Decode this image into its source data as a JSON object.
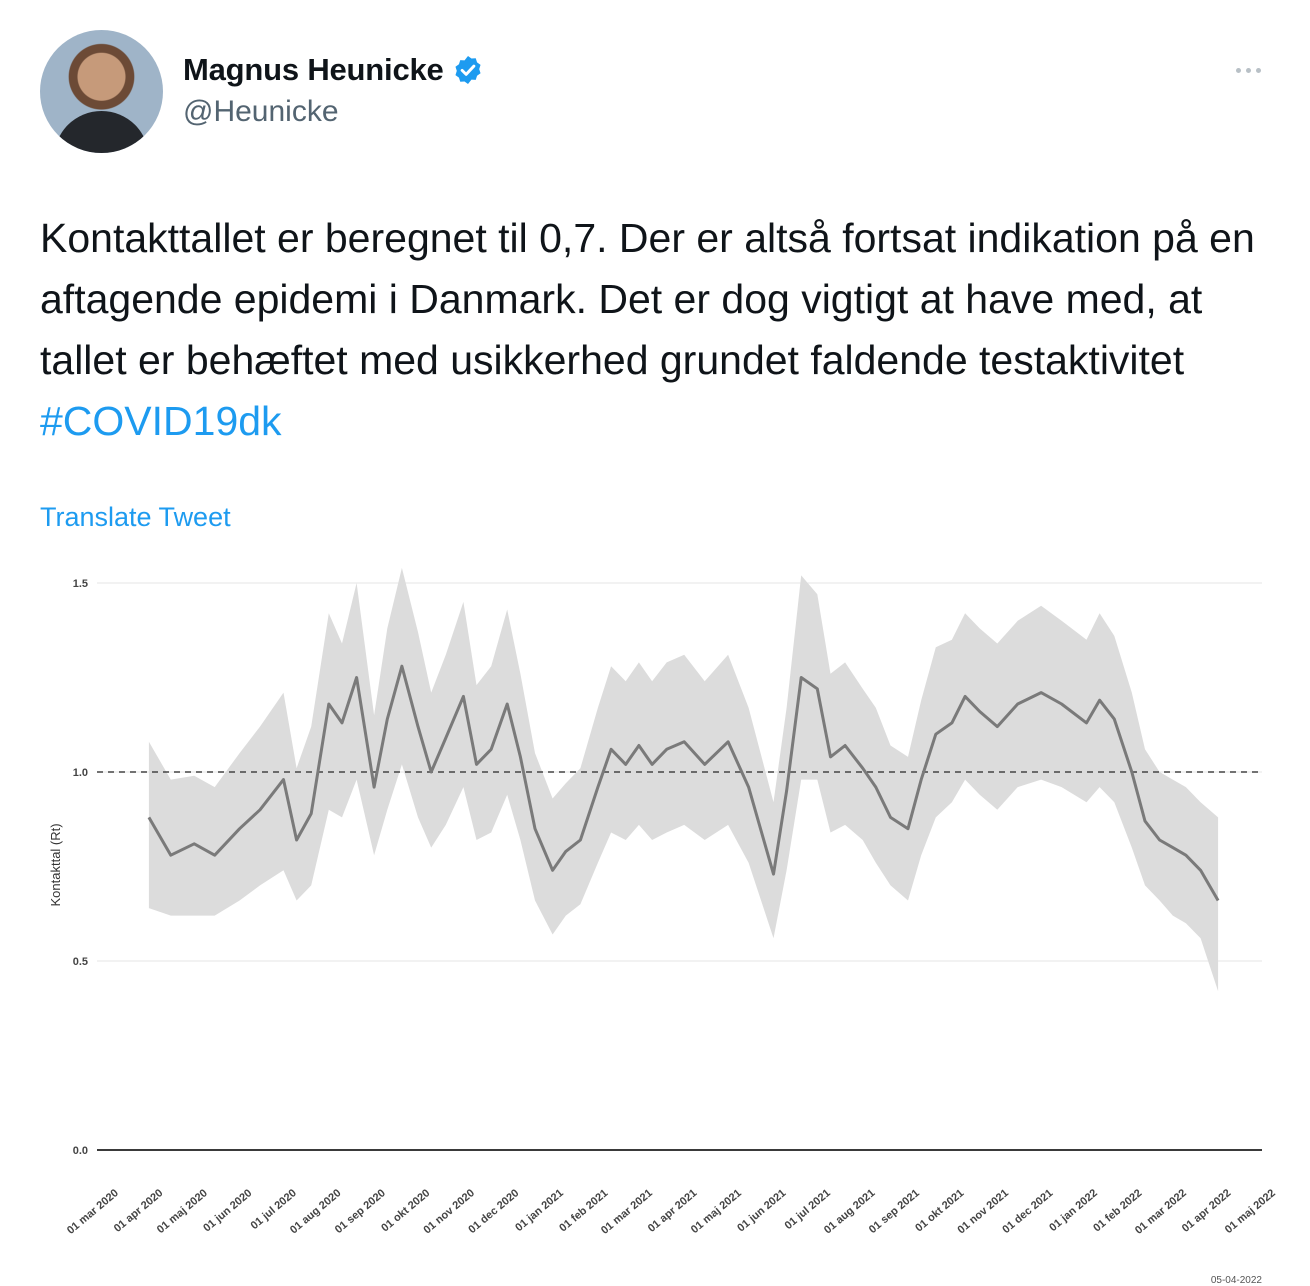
{
  "author": {
    "display_name": "Magnus Heunicke",
    "handle": "@Heunicke",
    "verified_icon": "verified-badge-icon"
  },
  "tweet": {
    "text": "Kontakttallet er beregnet til 0,7. Der er altså fortsat indikation på en aftagende epidemi i Danmark. Det er dog vigtigt at have med, at tallet er behæftet med usikkerhed grundet faldende testaktivitet ",
    "hashtag": "#COVID19dk",
    "translate_label": "Translate Tweet"
  },
  "colors": {
    "link": "#1d9bf0",
    "band": "#dcdcdc",
    "line": "#7a7a7a"
  },
  "chart_data": {
    "type": "line",
    "ylabel": "Kontakttal (Rt)",
    "ylim": [
      0,
      1.5
    ],
    "yticks": [
      "0.0",
      "0.5",
      "1.0",
      "1.5"
    ],
    "reference_line": 1.0,
    "xticks": [
      "01 mar 2020",
      "01 apr 2020",
      "01 maj 2020",
      "01 jun 2020",
      "01 jul 2020",
      "01 aug 2020",
      "01 sep 2020",
      "01 okt 2020",
      "01 nov 2020",
      "01 dec 2020",
      "01 jan 2021",
      "01 feb 2021",
      "01 mar 2021",
      "01 apr 2021",
      "01 maj 2021",
      "01 jun 2021",
      "01 jul 2021",
      "01 aug 2021",
      "01 sep 2021",
      "01 okt 2021",
      "01 nov 2021",
      "01 dec 2021",
      "01 jan 2022",
      "01 feb 2022",
      "01 mar 2022",
      "01 apr 2022",
      "01 maj 2022"
    ],
    "footnote": "05-04-2022",
    "series": [
      {
        "x": [
          "2020-03-31",
          "2020-04-15",
          "2020-05-01",
          "2020-05-15",
          "2020-06-01",
          "2020-06-15",
          "2020-07-01",
          "2020-07-10",
          "2020-07-20",
          "2020-08-01",
          "2020-08-10",
          "2020-08-20",
          "2020-09-01",
          "2020-09-10",
          "2020-09-20",
          "2020-10-01",
          "2020-10-10",
          "2020-10-20",
          "2020-11-01",
          "2020-11-10",
          "2020-11-20",
          "2020-12-01",
          "2020-12-10",
          "2020-12-20",
          "2021-01-01",
          "2021-01-10",
          "2021-01-20",
          "2021-02-01",
          "2021-02-10",
          "2021-02-20",
          "2021-03-01",
          "2021-03-10",
          "2021-03-20",
          "2021-04-01",
          "2021-04-15",
          "2021-05-01",
          "2021-05-15",
          "2021-06-01",
          "2021-06-10",
          "2021-06-20",
          "2021-07-01",
          "2021-07-10",
          "2021-07-20",
          "2021-08-01",
          "2021-08-10",
          "2021-08-20",
          "2021-09-01",
          "2021-09-10",
          "2021-09-20",
          "2021-10-01",
          "2021-10-10",
          "2021-10-20",
          "2021-11-01",
          "2021-11-15",
          "2021-12-01",
          "2021-12-15",
          "2022-01-01",
          "2022-01-10",
          "2022-01-20",
          "2022-02-01",
          "2022-02-10",
          "2022-02-20",
          "2022-03-01",
          "2022-03-10",
          "2022-03-20",
          "2022-04-01"
        ],
        "values": [
          0.88,
          0.78,
          0.81,
          0.78,
          0.85,
          0.9,
          0.98,
          0.82,
          0.89,
          1.18,
          1.13,
          1.25,
          0.96,
          1.14,
          1.28,
          1.12,
          1.0,
          1.09,
          1.2,
          1.02,
          1.06,
          1.18,
          1.04,
          0.85,
          0.74,
          0.79,
          0.82,
          0.96,
          1.06,
          1.02,
          1.07,
          1.02,
          1.06,
          1.08,
          1.02,
          1.08,
          0.96,
          0.73,
          0.95,
          1.25,
          1.22,
          1.04,
          1.07,
          1.01,
          0.96,
          0.88,
          0.85,
          0.98,
          1.1,
          1.13,
          1.2,
          1.16,
          1.12,
          1.18,
          1.21,
          1.18,
          1.13,
          1.19,
          1.14,
          1.0,
          0.87,
          0.82,
          0.8,
          0.78,
          0.74,
          0.66
        ],
        "lower": [
          0.64,
          0.62,
          0.62,
          0.62,
          0.66,
          0.7,
          0.74,
          0.66,
          0.7,
          0.9,
          0.88,
          0.98,
          0.78,
          0.9,
          1.02,
          0.88,
          0.8,
          0.86,
          0.96,
          0.82,
          0.84,
          0.94,
          0.82,
          0.66,
          0.57,
          0.62,
          0.65,
          0.76,
          0.84,
          0.82,
          0.86,
          0.82,
          0.84,
          0.86,
          0.82,
          0.86,
          0.76,
          0.56,
          0.74,
          0.98,
          0.98,
          0.84,
          0.86,
          0.82,
          0.76,
          0.7,
          0.66,
          0.78,
          0.88,
          0.92,
          0.98,
          0.94,
          0.9,
          0.96,
          0.98,
          0.96,
          0.92,
          0.96,
          0.92,
          0.8,
          0.7,
          0.66,
          0.62,
          0.6,
          0.56,
          0.42
        ],
        "upper": [
          1.08,
          0.98,
          0.99,
          0.96,
          1.05,
          1.12,
          1.21,
          1.01,
          1.12,
          1.42,
          1.34,
          1.5,
          1.15,
          1.38,
          1.54,
          1.37,
          1.21,
          1.31,
          1.45,
          1.23,
          1.28,
          1.43,
          1.26,
          1.05,
          0.93,
          0.97,
          1.01,
          1.17,
          1.28,
          1.24,
          1.29,
          1.24,
          1.29,
          1.31,
          1.24,
          1.31,
          1.17,
          0.92,
          1.17,
          1.52,
          1.47,
          1.26,
          1.29,
          1.22,
          1.17,
          1.07,
          1.04,
          1.19,
          1.33,
          1.35,
          1.42,
          1.38,
          1.34,
          1.4,
          1.44,
          1.4,
          1.35,
          1.42,
          1.36,
          1.21,
          1.06,
          1.0,
          0.98,
          0.96,
          0.92,
          0.88
        ]
      }
    ]
  }
}
